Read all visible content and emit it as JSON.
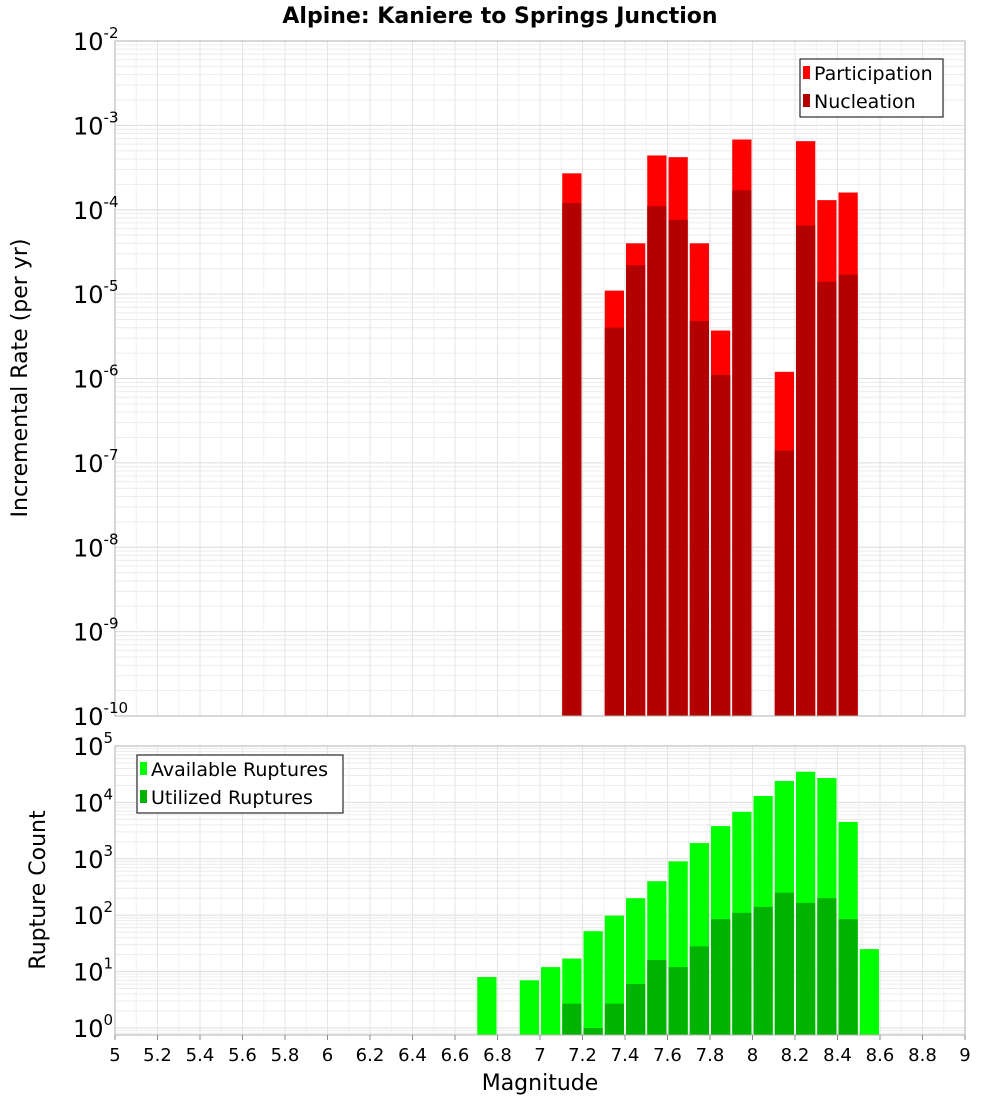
{
  "figure": {
    "title": "Alpine: Kaniere to Springs Junction",
    "xlabel": "Magnitude",
    "x_ticks": [
      "5",
      "5.2",
      "5.4",
      "5.6",
      "5.8",
      "6",
      "6.2",
      "6.4",
      "6.6",
      "6.8",
      "7",
      "7.2",
      "7.4",
      "7.6",
      "7.8",
      "8",
      "8.2",
      "8.4",
      "8.6",
      "8.8",
      "9"
    ]
  },
  "chart_data": [
    {
      "type": "bar",
      "ylabel": "Incremental Rate (per yr)",
      "xlim": [
        5,
        9
      ],
      "ylim": [
        1e-10,
        0.01
      ],
      "yscale": "log",
      "y_ticks": [
        "10-10",
        "10-9",
        "10-8",
        "10-7",
        "10-6",
        "10-5",
        "10-4",
        "10-3",
        "10-2"
      ],
      "legend_position": "top-right",
      "colors": {
        "Participation": "#ff0000",
        "Nucleation": "#b30000"
      },
      "x": [
        7.15,
        7.35,
        7.45,
        7.55,
        7.65,
        7.75,
        7.85,
        7.95,
        8.15,
        8.25,
        8.35,
        8.45
      ],
      "series": [
        {
          "name": "Participation",
          "values": [
            0.00027,
            1.1e-05,
            4e-05,
            0.00044,
            0.00042,
            4e-05,
            3.7e-06,
            0.00068,
            1.2e-06,
            0.00065,
            0.00013,
            0.00016
          ]
        },
        {
          "name": "Nucleation",
          "values": [
            0.00012,
            4e-06,
            2.2e-05,
            0.00011,
            7.6e-05,
            4.8e-06,
            1.1e-06,
            0.00017,
            1.4e-07,
            6.5e-05,
            1.4e-05,
            1.7e-05
          ]
        }
      ]
    },
    {
      "type": "bar",
      "ylabel": "Rupture Count",
      "xlim": [
        5,
        9
      ],
      "ylim": [
        0.75,
        100000
      ],
      "yscale": "log",
      "y_ticks": [
        "100",
        "101",
        "102",
        "103",
        "104",
        "105"
      ],
      "legend_position": "top-left",
      "colors": {
        "Available Ruptures": "#00ff00",
        "Utilized Ruptures": "#00b300"
      },
      "x": [
        6.75,
        6.95,
        7.05,
        7.15,
        7.25,
        7.35,
        7.45,
        7.55,
        7.65,
        7.75,
        7.85,
        7.95,
        8.05,
        8.15,
        8.25,
        8.35,
        8.45,
        8.55
      ],
      "series": [
        {
          "name": "Available Ruptures",
          "values": [
            8,
            7,
            12,
            17,
            52,
            98,
            200,
            400,
            900,
            1900,
            3800,
            6800,
            13000,
            24000,
            35000,
            27000,
            4500,
            25
          ]
        },
        {
          "name": "Utilized Ruptures",
          "values": [
            0,
            0,
            0,
            2.7,
            1,
            2.7,
            6,
            16,
            12,
            28,
            85,
            110,
            140,
            250,
            165,
            200,
            85,
            0
          ]
        }
      ]
    }
  ]
}
